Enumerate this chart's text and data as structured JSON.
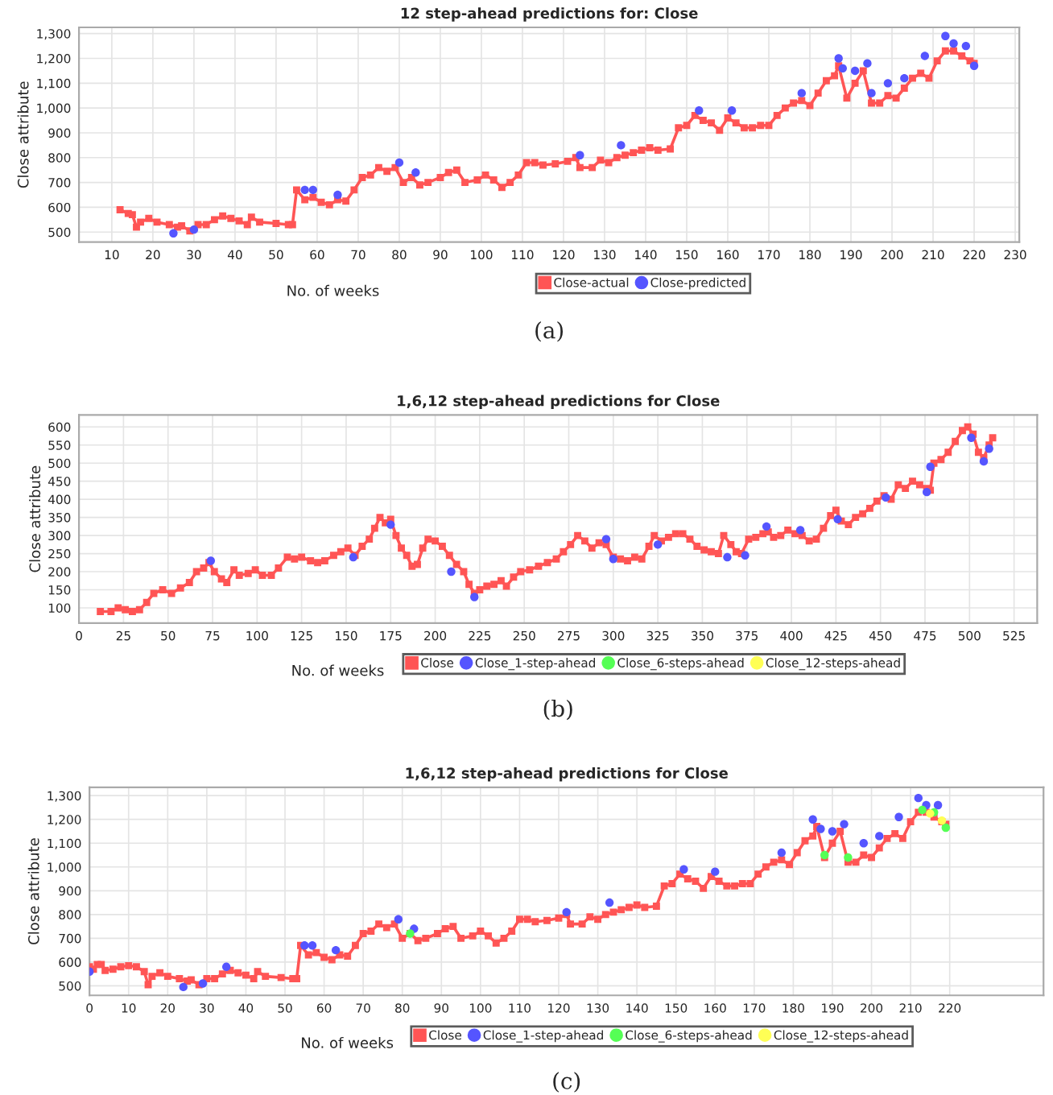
{
  "chart_data": [
    {
      "type": "line",
      "title": "12 step-ahead predictions for: Close",
      "xlabel": "No. of weeks",
      "ylabel": "Close attribute",
      "annotations": [
        "(a)"
      ],
      "xlim": [
        2,
        231
      ],
      "xticks": [
        10,
        20,
        30,
        40,
        50,
        60,
        70,
        80,
        90,
        100,
        110,
        120,
        130,
        140,
        150,
        160,
        170,
        180,
        190,
        200,
        210,
        220,
        230
      ],
      "ylim": [
        460,
        1325
      ],
      "yticks": [
        500,
        600,
        700,
        800,
        900,
        {
          "value": 1000,
          "label": "1,000"
        },
        {
          "value": 1100,
          "label": "1,100"
        },
        {
          "value": 1200,
          "label": "1,200"
        },
        {
          "value": 1300,
          "label": "1,300"
        }
      ],
      "grid": true,
      "legend": "bottom",
      "series": [
        {
          "name": "Close-actual",
          "color": "#ff5555",
          "marker": "square",
          "x": [
            12,
            14,
            15,
            16,
            17,
            19,
            21,
            24,
            26,
            27,
            29,
            31,
            33,
            35,
            37,
            39,
            41,
            43,
            44,
            46,
            50,
            53,
            54,
            55,
            57,
            59,
            61,
            63,
            65,
            67,
            69,
            71,
            73,
            75,
            77,
            79,
            81,
            83,
            85,
            87,
            90,
            92,
            94,
            96,
            99,
            101,
            103,
            105,
            107,
            109,
            111,
            113,
            115,
            118,
            121,
            123,
            124,
            127,
            129,
            131,
            133,
            135,
            137,
            139,
            141,
            143,
            146,
            148,
            150,
            152,
            154,
            156,
            158,
            160,
            162,
            164,
            166,
            168,
            170,
            172,
            174,
            176,
            178,
            180,
            182,
            184,
            186,
            187,
            189,
            191,
            193,
            195,
            197,
            199,
            201,
            203,
            205,
            207,
            209,
            211,
            213,
            215,
            217,
            219,
            220
          ],
          "values": [
            590,
            575,
            570,
            520,
            540,
            555,
            540,
            530,
            520,
            525,
            505,
            530,
            530,
            550,
            565,
            555,
            545,
            530,
            560,
            540,
            535,
            530,
            530,
            670,
            630,
            640,
            620,
            610,
            630,
            625,
            670,
            720,
            730,
            760,
            745,
            760,
            700,
            720,
            690,
            700,
            720,
            740,
            750,
            700,
            710,
            730,
            710,
            680,
            700,
            730,
            780,
            780,
            770,
            775,
            785,
            800,
            760,
            760,
            790,
            780,
            800,
            810,
            820,
            830,
            840,
            830,
            835,
            920,
            930,
            970,
            950,
            940,
            910,
            960,
            940,
            920,
            920,
            930,
            930,
            970,
            1000,
            1020,
            1030,
            1010,
            1060,
            1110,
            1130,
            1170,
            1040,
            1100,
            1150,
            1020,
            1020,
            1050,
            1040,
            1080,
            1120,
            1140,
            1120,
            1190,
            1230,
            1230,
            1210,
            1190,
            1180
          ]
        },
        {
          "name": "Close-predicted",
          "type": "scatter",
          "color": "#5555ff",
          "marker": "circle",
          "x": [
            25,
            30,
            57,
            59,
            65,
            80,
            84,
            124,
            134,
            153,
            161,
            178,
            187,
            188,
            191,
            194,
            195,
            199,
            203,
            208,
            213,
            215,
            218,
            220
          ],
          "values": [
            495,
            510,
            670,
            670,
            650,
            780,
            740,
            810,
            850,
            990,
            990,
            1060,
            1200,
            1160,
            1150,
            1180,
            1060,
            1100,
            1120,
            1210,
            1290,
            1260,
            1250,
            1170
          ]
        }
      ]
    },
    {
      "type": "line",
      "title": "1,6,12 step-ahead predictions for Close",
      "xlabel": "No. of weeks",
      "ylabel": "Close attribute",
      "annotations": [
        "(b)"
      ],
      "xlim": [
        0,
        538
      ],
      "xticks": [
        0,
        25,
        50,
        75,
        100,
        125,
        150,
        175,
        200,
        225,
        250,
        275,
        300,
        325,
        350,
        375,
        400,
        425,
        450,
        475,
        500,
        525
      ],
      "ylim": [
        58,
        633
      ],
      "yticks": [
        100,
        150,
        200,
        250,
        300,
        350,
        400,
        450,
        500,
        550,
        600
      ],
      "grid": true,
      "legend": "bottom",
      "series": [
        {
          "name": "Close",
          "color": "#ff5555",
          "marker": "square",
          "x": [
            12,
            18,
            22,
            26,
            30,
            34,
            38,
            42,
            47,
            52,
            57,
            62,
            66,
            70,
            73,
            76,
            80,
            83,
            87,
            90,
            95,
            99,
            103,
            108,
            112,
            117,
            121,
            125,
            130,
            134,
            138,
            143,
            147,
            151,
            155,
            159,
            163,
            166,
            169,
            172,
            175,
            178,
            181,
            184,
            187,
            190,
            193,
            196,
            200,
            204,
            208,
            212,
            216,
            219,
            222,
            225,
            229,
            233,
            237,
            240,
            244,
            248,
            253,
            258,
            263,
            268,
            272,
            276,
            280,
            284,
            288,
            292,
            296,
            300,
            304,
            308,
            312,
            316,
            320,
            323,
            327,
            331,
            335,
            339,
            343,
            347,
            351,
            355,
            359,
            362,
            366,
            369,
            372,
            376,
            380,
            384,
            387,
            390,
            394,
            398,
            402,
            406,
            410,
            414,
            418,
            422,
            425,
            428,
            432,
            436,
            440,
            444,
            448,
            452,
            456,
            460,
            464,
            468,
            472,
            476,
            478,
            480,
            484,
            488,
            492,
            496,
            499,
            502,
            505,
            508,
            511,
            513
          ],
          "values": [
            90,
            90,
            100,
            95,
            90,
            95,
            115,
            140,
            150,
            140,
            155,
            170,
            200,
            210,
            225,
            200,
            180,
            170,
            205,
            190,
            195,
            205,
            190,
            190,
            210,
            240,
            235,
            240,
            230,
            225,
            230,
            245,
            255,
            265,
            245,
            270,
            290,
            320,
            350,
            335,
            345,
            300,
            265,
            245,
            215,
            220,
            265,
            290,
            285,
            270,
            245,
            220,
            200,
            165,
            140,
            150,
            160,
            165,
            175,
            160,
            185,
            200,
            205,
            215,
            225,
            235,
            255,
            275,
            300,
            285,
            265,
            280,
            275,
            240,
            235,
            230,
            240,
            235,
            270,
            300,
            285,
            295,
            305,
            305,
            290,
            270,
            260,
            255,
            250,
            300,
            275,
            255,
            250,
            290,
            295,
            305,
            310,
            295,
            300,
            315,
            305,
            300,
            285,
            290,
            320,
            355,
            370,
            340,
            330,
            350,
            360,
            375,
            395,
            410,
            400,
            440,
            430,
            450,
            440,
            430,
            425,
            500,
            510,
            530,
            560,
            590,
            600,
            580,
            530,
            515,
            550,
            570
          ]
        },
        {
          "name": "Close_1-step-ahead",
          "type": "scatter",
          "color": "#5555ff",
          "marker": "circle",
          "x": [
            74,
            154,
            175,
            209,
            222,
            296,
            300,
            325,
            364,
            374,
            386,
            405,
            426,
            453,
            476,
            478,
            501,
            508,
            511
          ],
          "values": [
            230,
            240,
            330,
            200,
            130,
            290,
            235,
            275,
            240,
            245,
            325,
            315,
            345,
            405,
            420,
            490,
            570,
            505,
            540
          ]
        },
        {
          "name": "Close_6-steps-ahead",
          "type": "scatter",
          "color": "#55ff55",
          "marker": "circle"
        },
        {
          "name": "Close_12-steps-ahead",
          "type": "scatter",
          "color": "#ffff55",
          "marker": "circle"
        }
      ]
    },
    {
      "type": "line",
      "title": "1,6,12 step-ahead predictions for Close",
      "xlabel": "No. of weeks",
      "ylabel": "Close attribute",
      "annotations": [
        "(c)"
      ],
      "xlim": [
        0,
        244
      ],
      "xticks": [
        0,
        10,
        20,
        30,
        40,
        50,
        60,
        70,
        80,
        90,
        100,
        110,
        120,
        130,
        140,
        150,
        160,
        170,
        180,
        190,
        200,
        210,
        220
      ],
      "ylim": [
        460,
        1335
      ],
      "yticks": [
        500,
        600,
        700,
        800,
        900,
        {
          "value": 1000,
          "label": "1,000"
        },
        {
          "value": 1100,
          "label": "1,100"
        },
        {
          "value": 1200,
          "label": "1,200"
        },
        {
          "value": 1300,
          "label": "1,300"
        }
      ],
      "grid": true,
      "legend": "bottom",
      "series": [
        {
          "name": "Close",
          "color": "#ff5555",
          "marker": "square",
          "x": [
            0,
            1,
            2,
            3,
            4,
            6,
            8,
            10,
            12,
            14,
            15,
            16,
            18,
            20,
            23,
            25,
            26,
            28,
            30,
            32,
            34,
            36,
            38,
            40,
            42,
            43,
            45,
            49,
            52,
            53,
            54,
            56,
            58,
            60,
            62,
            64,
            66,
            68,
            70,
            72,
            74,
            76,
            78,
            80,
            82,
            84,
            86,
            89,
            91,
            93,
            95,
            98,
            100,
            102,
            104,
            106,
            108,
            110,
            112,
            114,
            117,
            120,
            122,
            123,
            126,
            128,
            130,
            132,
            134,
            136,
            138,
            140,
            142,
            145,
            147,
            149,
            151,
            153,
            155,
            157,
            159,
            161,
            163,
            165,
            167,
            169,
            171,
            173,
            175,
            177,
            179,
            181,
            183,
            185,
            186,
            188,
            190,
            192,
            194,
            196,
            198,
            200,
            202,
            204,
            206,
            208,
            210,
            212,
            214,
            216,
            218,
            219
          ],
          "values": [
            580,
            570,
            590,
            590,
            565,
            570,
            580,
            585,
            580,
            560,
            505,
            540,
            555,
            540,
            530,
            520,
            525,
            505,
            530,
            530,
            550,
            565,
            555,
            545,
            530,
            560,
            540,
            535,
            530,
            530,
            670,
            630,
            640,
            620,
            610,
            630,
            625,
            670,
            720,
            730,
            760,
            745,
            760,
            700,
            720,
            690,
            700,
            720,
            740,
            750,
            700,
            710,
            730,
            710,
            680,
            700,
            730,
            780,
            780,
            770,
            775,
            785,
            800,
            760,
            760,
            790,
            780,
            800,
            810,
            820,
            830,
            840,
            830,
            835,
            920,
            930,
            970,
            950,
            940,
            910,
            960,
            940,
            920,
            920,
            930,
            930,
            970,
            1000,
            1020,
            1030,
            1010,
            1060,
            1110,
            1130,
            1170,
            1040,
            1100,
            1150,
            1020,
            1020,
            1050,
            1040,
            1080,
            1120,
            1140,
            1120,
            1190,
            1230,
            1230,
            1210,
            1190,
            1180
          ]
        },
        {
          "name": "Close_1-step-ahead",
          "type": "scatter",
          "color": "#5555ff",
          "marker": "circle",
          "x": [
            0,
            24,
            29,
            35,
            55,
            57,
            63,
            79,
            83,
            122,
            133,
            152,
            160,
            177,
            185,
            187,
            190,
            193,
            198,
            202,
            207,
            212,
            214,
            217
          ],
          "values": [
            560,
            495,
            510,
            580,
            670,
            670,
            650,
            780,
            740,
            810,
            850,
            990,
            980,
            1060,
            1200,
            1160,
            1150,
            1180,
            1100,
            1130,
            1210,
            1290,
            1260,
            1260
          ]
        },
        {
          "name": "Close_6-steps-ahead",
          "type": "scatter",
          "color": "#55ff55",
          "marker": "circle",
          "x": [
            82,
            188,
            194,
            213,
            216,
            219
          ],
          "values": [
            720,
            1050,
            1040,
            1240,
            1230,
            1165
          ]
        },
        {
          "name": "Close_12-steps-ahead",
          "type": "scatter",
          "color": "#ffff55",
          "marker": "circle",
          "x": [
            215,
            218
          ],
          "values": [
            1225,
            1195
          ]
        }
      ]
    }
  ]
}
